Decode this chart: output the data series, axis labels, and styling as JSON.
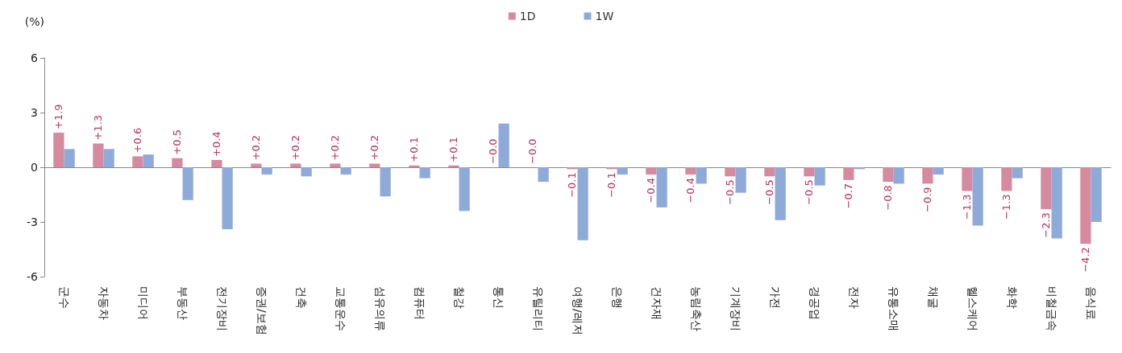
{
  "chart_data": {
    "type": "bar",
    "ylabel": "(%)",
    "legend": "top",
    "categories": [
      "군수",
      "자동차",
      "미디어",
      "부동산",
      "전기장비",
      "증권/보험",
      "건축",
      "교통운수",
      "섬유의류",
      "컴퓨터",
      "철강",
      "통신",
      "유틸리티",
      "여행/레저",
      "은행",
      "건자재",
      "농림축산",
      "기계장비",
      "가전",
      "경공업",
      "전자",
      "유통소매",
      "채굴",
      "헬스케어",
      "화학",
      "비철금속",
      "음식료"
    ],
    "ylim": [
      -6,
      6
    ],
    "yticks": [
      -6,
      -3,
      0,
      3,
      6
    ],
    "series": [
      {
        "name": "1D",
        "color": "#d68aa0",
        "values": [
          1.9,
          1.3,
          0.6,
          0.5,
          0.4,
          0.2,
          0.2,
          0.2,
          0.2,
          0.1,
          0.1,
          0,
          0,
          -0.1,
          -0.1,
          -0.4,
          -0.4,
          -0.5,
          -0.5,
          -0.5,
          -0.7,
          -0.8,
          -0.9,
          -1.3,
          -1.3,
          -2.3,
          -4.2
        ],
        "value_labels": [
          "+1.9",
          "+1.3",
          "+0.6",
          "+0.5",
          "+0.4",
          "+0.2",
          "+0.2",
          "+0.2",
          "+0.2",
          "+0.1",
          "+0.1",
          "−0.0",
          "−0.0",
          "−0.1",
          "−0.1",
          "−0.4",
          "−0.4",
          "−0.5",
          "−0.5",
          "−0.5",
          "−0.7",
          "−0.8",
          "−0.9",
          "−1.3",
          "−1.3",
          "−2.3",
          "−4.2"
        ]
      },
      {
        "name": "1W",
        "color": "#8eaad8",
        "values": [
          1.0,
          1.0,
          0.7,
          -1.8,
          -3.4,
          -0.4,
          -0.5,
          -0.4,
          -1.6,
          -0.6,
          -2.4,
          2.4,
          -0.8,
          -4.0,
          -0.4,
          -2.2,
          -0.9,
          -1.4,
          -2.9,
          -1.0,
          -0.1,
          -0.9,
          -0.4,
          -3.2,
          -0.6,
          -3.9,
          -3.0
        ]
      }
    ]
  }
}
